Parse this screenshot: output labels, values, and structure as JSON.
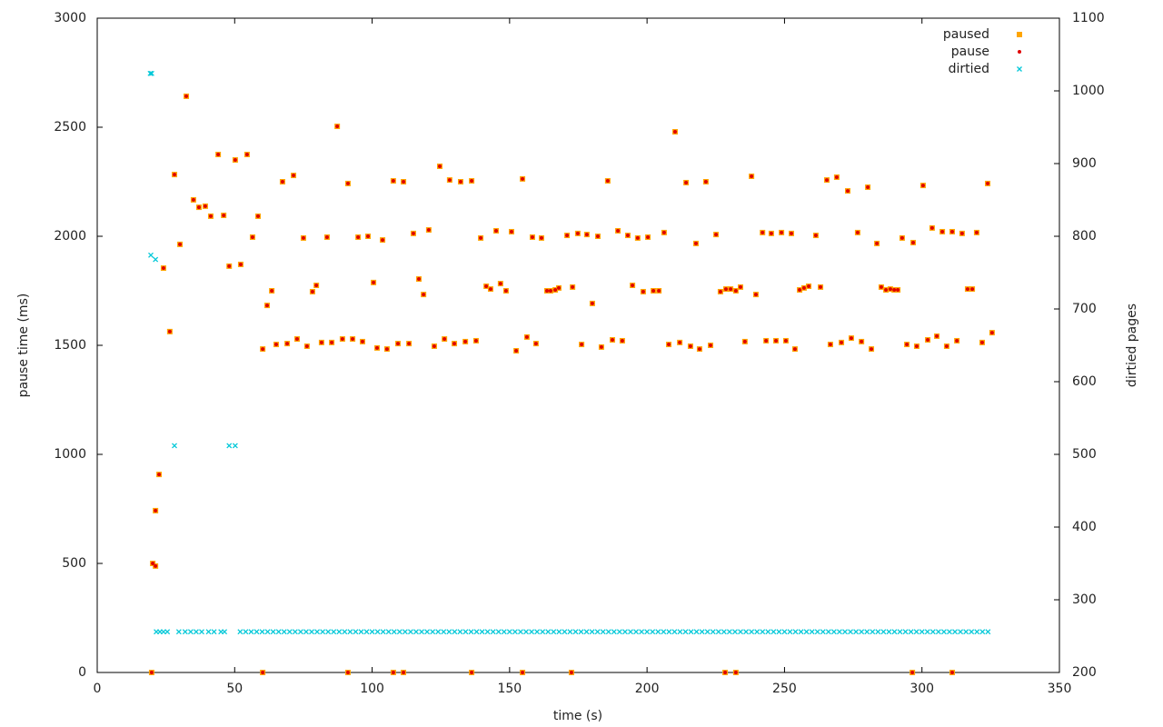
{
  "chart_data": {
    "type": "scatter",
    "xlabel": "time (s)",
    "ylabel": "pause time (ms)",
    "y2label": "dirtied pages",
    "xlim": [
      0,
      350
    ],
    "xticks": [
      0,
      50,
      100,
      150,
      200,
      250,
      300,
      350
    ],
    "ylim": [
      0,
      3000
    ],
    "yticks": [
      0,
      500,
      1000,
      1500,
      2000,
      2500,
      3000
    ],
    "y2lim": [
      200,
      1100
    ],
    "y2ticks": [
      200,
      300,
      400,
      500,
      600,
      700,
      800,
      900,
      1000,
      1100
    ],
    "legend": "top-right",
    "grid": false,
    "series": [
      {
        "name": "paused",
        "color": "#ffa500",
        "marker": "square",
        "x": [
          19.8,
          20.2,
          21.2,
          21.2,
          22.5,
          24.1,
          26.4,
          28.1,
          30.1,
          32.4,
          35,
          37,
          39.3,
          41.3,
          44,
          46,
          48,
          50.2,
          52.2,
          54.5,
          56.5,
          58.5,
          60.2,
          60.2,
          61.8,
          63.5,
          65.1,
          67.4,
          69.1,
          71.4,
          72.7,
          75,
          76.3,
          78.3,
          79.7,
          81.6,
          83.6,
          85.3,
          87.3,
          89.2,
          91.2,
          91.2,
          92.9,
          94.9,
          96.5,
          98.5,
          100.5,
          101.8,
          103.8,
          105.4,
          107.7,
          107.7,
          109.4,
          111.4,
          111.4,
          113.4,
          115,
          117,
          118.7,
          120.6,
          122.6,
          124.6,
          126.3,
          128.2,
          129.9,
          132.2,
          133.9,
          136.2,
          136.2,
          137.8,
          139.5,
          141.5,
          143.1,
          145.1,
          146.7,
          148.7,
          150.7,
          152.4,
          154.7,
          154.7,
          156.3,
          158.3,
          159.6,
          161.6,
          163.6,
          164.9,
          166.6,
          167.9,
          170.9,
          172.5,
          172.9,
          174.8,
          176.2,
          178.1,
          180.1,
          182.1,
          183.4,
          185.7,
          187.4,
          189.4,
          191,
          193,
          194.7,
          196.6,
          198.6,
          200.3,
          202.3,
          204.3,
          206.2,
          207.9,
          210.2,
          211.9,
          214.2,
          215.8,
          217.8,
          219.1,
          221.4,
          223.1,
          225.1,
          226.7,
          228.4,
          228.7,
          230.4,
          232.3,
          232.3,
          234,
          235.6,
          238,
          239.6,
          242,
          243.3,
          245.2,
          246.9,
          248.9,
          250.5,
          252.5,
          253.8,
          255.5,
          257.1,
          258.8,
          261.4,
          263.1,
          265.4,
          266.7,
          269,
          270.7,
          273,
          274.3,
          276.6,
          278,
          280.3,
          281.6,
          283.6,
          285.2,
          286.9,
          288.5,
          289.9,
          291.2,
          292.8,
          294.5,
          296.5,
          296.8,
          298.1,
          300.4,
          302.1,
          303.7,
          305.4,
          307.4,
          309,
          311,
          311,
          312.7,
          314.6,
          316.6,
          318.3,
          319.9,
          321.9,
          323.9,
          325.5
        ],
        "values": [
          0,
          500,
          488,
          742,
          908,
          1854,
          1563,
          2283,
          1963,
          2642,
          2167,
          2133,
          2138,
          2092,
          2375,
          2096,
          1863,
          2350,
          1871,
          2375,
          1996,
          2092,
          0,
          1483,
          1683,
          1750,
          1504,
          2250,
          1508,
          2279,
          1529,
          1992,
          1496,
          1746,
          1775,
          1513,
          1996,
          1513,
          2504,
          1529,
          0,
          2242,
          1529,
          1996,
          1517,
          2000,
          1788,
          1488,
          1983,
          1483,
          0,
          2254,
          1508,
          0,
          2250,
          1508,
          2013,
          1804,
          1733,
          2029,
          1496,
          2321,
          1529,
          2258,
          1508,
          2250,
          1517,
          0,
          2254,
          1521,
          1992,
          1771,
          1758,
          2025,
          1783,
          1750,
          2021,
          1475,
          0,
          2263,
          1538,
          1996,
          1508,
          1992,
          1750,
          1750,
          1754,
          1763,
          2004,
          0,
          1767,
          2013,
          1504,
          2008,
          1692,
          2000,
          1492,
          2254,
          1525,
          2025,
          1521,
          2004,
          1775,
          1992,
          1746,
          1996,
          1750,
          1750,
          2017,
          1504,
          2479,
          1513,
          2246,
          1496,
          1967,
          1483,
          2250,
          1500,
          2008,
          1746,
          0,
          1758,
          1758,
          0,
          1750,
          1767,
          1517,
          2275,
          1733,
          2017,
          1521,
          2013,
          1521,
          2017,
          1521,
          2013,
          1483,
          1754,
          1763,
          1771,
          2004,
          1767,
          2258,
          1504,
          2271,
          1513,
          2208,
          1533,
          2017,
          1517,
          2225,
          1483,
          1967,
          1767,
          1754,
          1758,
          1754,
          1754,
          1992,
          1504,
          0,
          1971,
          1496,
          2233,
          1525,
          2038,
          1542,
          2021,
          1496,
          0,
          2021,
          1521,
          2013,
          1758,
          1758,
          2017,
          1513,
          2242,
          1558
        ]
      },
      {
        "name": "pause",
        "color": "#e00000",
        "marker": "dot",
        "x": [
          19.8,
          20.2,
          21.2,
          21.2,
          22.5,
          24.1,
          26.4,
          28.1,
          30.1,
          32.4,
          35,
          37,
          39.3,
          41.3,
          44,
          46,
          48,
          50.2,
          52.2,
          54.5,
          56.5,
          58.5,
          60.2,
          60.2,
          61.8,
          63.5,
          65.1,
          67.4,
          69.1,
          71.4,
          72.7,
          75,
          76.3,
          78.3,
          79.7,
          81.6,
          83.6,
          85.3,
          87.3,
          89.2,
          91.2,
          91.2,
          92.9,
          94.9,
          96.5,
          98.5,
          100.5,
          101.8,
          103.8,
          105.4,
          107.7,
          107.7,
          109.4,
          111.4,
          111.4,
          113.4,
          115,
          117,
          118.7,
          120.6,
          122.6,
          124.6,
          126.3,
          128.2,
          129.9,
          132.2,
          133.9,
          136.2,
          136.2,
          137.8,
          139.5,
          141.5,
          143.1,
          145.1,
          146.7,
          148.7,
          150.7,
          152.4,
          154.7,
          154.7,
          156.3,
          158.3,
          159.6,
          161.6,
          163.6,
          164.9,
          166.6,
          167.9,
          170.9,
          172.5,
          172.9,
          174.8,
          176.2,
          178.1,
          180.1,
          182.1,
          183.4,
          185.7,
          187.4,
          189.4,
          191,
          193,
          194.7,
          196.6,
          198.6,
          200.3,
          202.3,
          204.3,
          206.2,
          207.9,
          210.2,
          211.9,
          214.2,
          215.8,
          217.8,
          219.1,
          221.4,
          223.1,
          225.1,
          226.7,
          228.4,
          228.7,
          230.4,
          232.3,
          232.3,
          234,
          235.6,
          238,
          239.6,
          242,
          243.3,
          245.2,
          246.9,
          248.9,
          250.5,
          252.5,
          253.8,
          255.5,
          257.1,
          258.8,
          261.4,
          263.1,
          265.4,
          266.7,
          269,
          270.7,
          273,
          274.3,
          276.6,
          278,
          280.3,
          281.6,
          283.6,
          285.2,
          286.9,
          288.5,
          289.9,
          291.2,
          292.8,
          294.5,
          296.5,
          296.8,
          298.1,
          300.4,
          302.1,
          303.7,
          305.4,
          307.4,
          309,
          311,
          311,
          312.7,
          314.6,
          316.6,
          318.3,
          319.9,
          321.9,
          323.9,
          325.5
        ],
        "values": [
          0,
          500,
          488,
          742,
          908,
          1854,
          1563,
          2283,
          1963,
          2642,
          2167,
          2133,
          2138,
          2092,
          2375,
          2096,
          1863,
          2350,
          1871,
          2375,
          1996,
          2092,
          0,
          1483,
          1683,
          1750,
          1504,
          2250,
          1508,
          2279,
          1529,
          1992,
          1496,
          1746,
          1775,
          1513,
          1996,
          1513,
          2504,
          1529,
          0,
          2242,
          1529,
          1996,
          1517,
          2000,
          1788,
          1488,
          1983,
          1483,
          0,
          2254,
          1508,
          0,
          2250,
          1508,
          2013,
          1804,
          1733,
          2029,
          1496,
          2321,
          1529,
          2258,
          1508,
          2250,
          1517,
          0,
          2254,
          1521,
          1992,
          1771,
          1758,
          2025,
          1783,
          1750,
          2021,
          1475,
          0,
          2263,
          1538,
          1996,
          1508,
          1992,
          1750,
          1750,
          1754,
          1763,
          2004,
          0,
          1767,
          2013,
          1504,
          2008,
          1692,
          2000,
          1492,
          2254,
          1525,
          2025,
          1521,
          2004,
          1775,
          1992,
          1746,
          1996,
          1750,
          1750,
          2017,
          1504,
          2479,
          1513,
          2246,
          1496,
          1967,
          1483,
          2250,
          1500,
          2008,
          1746,
          0,
          1758,
          1758,
          0,
          1750,
          1767,
          1517,
          2275,
          1733,
          2017,
          1521,
          2013,
          1521,
          2017,
          1521,
          2013,
          1483,
          1754,
          1763,
          1771,
          2004,
          1767,
          2258,
          1504,
          2271,
          1513,
          2208,
          1533,
          2017,
          1517,
          2225,
          1483,
          1967,
          1767,
          1754,
          1758,
          1754,
          1754,
          1992,
          1504,
          0,
          1971,
          1496,
          2233,
          1525,
          2038,
          1542,
          2021,
          1496,
          0,
          2021,
          1521,
          2013,
          1758,
          1758,
          2017,
          1513,
          2242,
          1558
        ]
      },
      {
        "name": "dirtied",
        "color": "#00c8d8",
        "marker": "cross",
        "axis": "y2",
        "x": [
          19.3,
          19.8,
          19.5,
          21.2,
          28.1,
          48,
          50.2,
          21.5,
          22.8,
          24.1,
          25.5,
          29.7,
          32,
          34,
          36,
          38,
          40.5,
          42.5,
          45,
          46.3,
          52,
          54,
          56,
          58,
          60,
          62,
          64,
          66,
          68,
          70,
          72,
          74,
          76,
          78,
          80,
          82,
          84,
          86,
          88,
          90,
          92,
          94,
          96,
          98,
          100,
          102,
          104,
          106,
          108,
          110,
          112,
          114,
          116,
          118,
          120,
          122,
          124,
          126,
          128,
          130,
          132,
          134,
          136,
          138,
          140,
          142,
          144,
          146,
          148,
          150,
          152,
          154,
          156,
          158,
          160,
          162,
          164,
          166,
          168,
          170,
          172,
          174,
          176,
          178,
          180,
          182,
          184,
          186,
          188,
          190,
          192,
          194,
          196,
          198,
          200,
          202,
          204,
          206,
          208,
          210,
          212,
          214,
          216,
          218,
          220,
          222,
          224,
          226,
          228,
          230,
          232,
          234,
          236,
          238,
          240,
          242,
          244,
          246,
          248,
          250,
          252,
          254,
          256,
          258,
          260,
          262,
          264,
          266,
          268,
          270,
          272,
          274,
          276,
          278,
          280,
          282,
          284,
          286,
          288,
          290,
          292,
          294,
          296,
          298,
          300,
          302,
          304,
          306,
          308,
          310,
          312,
          314,
          316,
          318,
          320,
          322,
          324
        ],
        "values": [
          1024,
          1024,
          774,
          768,
          512,
          512,
          512,
          256,
          256,
          256,
          256,
          256,
          256,
          256,
          256,
          256,
          256,
          256,
          256,
          256,
          256,
          256,
          256,
          256,
          256,
          256,
          256,
          256,
          256,
          256,
          256,
          256,
          256,
          256,
          256,
          256,
          256,
          256,
          256,
          256,
          256,
          256,
          256,
          256,
          256,
          256,
          256,
          256,
          256,
          256,
          256,
          256,
          256,
          256,
          256,
          256,
          256,
          256,
          256,
          256,
          256,
          256,
          256,
          256,
          256,
          256,
          256,
          256,
          256,
          256,
          256,
          256,
          256,
          256,
          256,
          256,
          256,
          256,
          256,
          256,
          256,
          256,
          256,
          256,
          256,
          256,
          256,
          256,
          256,
          256,
          256,
          256,
          256,
          256,
          256,
          256,
          256,
          256,
          256,
          256,
          256,
          256,
          256,
          256,
          256,
          256,
          256,
          256,
          256,
          256,
          256,
          256,
          256,
          256,
          256,
          256,
          256,
          256,
          256,
          256,
          256,
          256,
          256,
          256,
          256,
          256,
          256,
          256,
          256,
          256,
          256,
          256,
          256,
          256,
          256,
          256,
          256,
          256,
          256,
          256,
          256,
          256,
          256,
          256,
          256,
          256,
          256,
          256,
          256,
          256,
          256,
          256,
          256,
          256,
          256,
          256,
          256
        ]
      }
    ]
  }
}
